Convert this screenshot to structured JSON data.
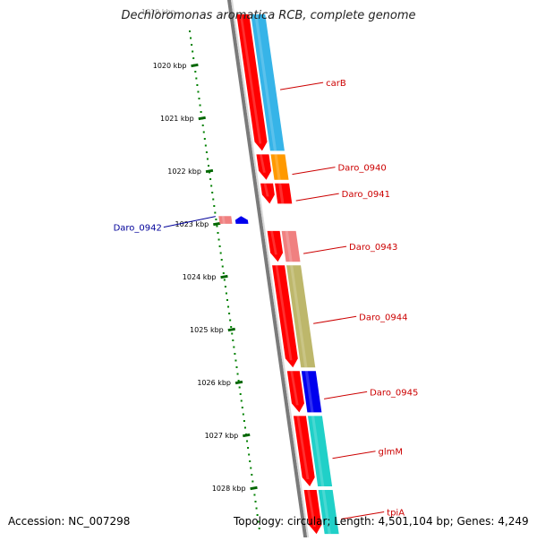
{
  "title": "Dechloromonas aromatica RCB, complete genome",
  "footer": {
    "accession": "Accession: NC_007298",
    "topology": "Topology: circular; Length: 4,501,104 bp; Genes: 4,249"
  },
  "top_tick_label": "1019 kbp",
  "ticks": [
    {
      "label": "1020 kbp",
      "pos_kbp": 1020
    },
    {
      "label": "1021 kbp",
      "pos_kbp": 1021
    },
    {
      "label": "1022 kbp",
      "pos_kbp": 1022
    },
    {
      "label": "1023 kbp",
      "pos_kbp": 1023
    },
    {
      "label": "1024 kbp",
      "pos_kbp": 1024
    },
    {
      "label": "1025 kbp",
      "pos_kbp": 1025
    },
    {
      "label": "1026 kbp",
      "pos_kbp": 1026
    },
    {
      "label": "1027 kbp",
      "pos_kbp": 1027
    },
    {
      "label": "1028 kbp",
      "pos_kbp": 1028
    }
  ],
  "genes": [
    {
      "name": "carB",
      "start_kbp": 1019.0,
      "end_kbp": 1021.65,
      "strand": "+",
      "cog_color": "#36b4e8",
      "label_color": "#cc0000"
    },
    {
      "name": "Daro_0940",
      "start_kbp": 1021.65,
      "end_kbp": 1022.2,
      "strand": "+",
      "cog_color": "#ff9900",
      "label_color": "#cc0000"
    },
    {
      "name": "Daro_0941",
      "start_kbp": 1022.2,
      "end_kbp": 1022.65,
      "strand": "+",
      "cog_color": "#ff0000",
      "label_color": "#cc0000"
    },
    {
      "name": "Daro_0942",
      "start_kbp": 1022.75,
      "end_kbp": 1023.1,
      "strand": "-",
      "cog_color": "#0000ee",
      "label_color": "#000099"
    },
    {
      "name": "Daro_0943",
      "start_kbp": 1023.1,
      "end_kbp": 1023.75,
      "strand": "+",
      "cog_color": "#f08080",
      "label_color": "#cc0000"
    },
    {
      "name": "Daro_0944",
      "start_kbp": 1023.75,
      "end_kbp": 1025.75,
      "strand": "+",
      "cog_color": "#bdb76b",
      "label_color": "#cc0000"
    },
    {
      "name": "Daro_0945",
      "start_kbp": 1025.75,
      "end_kbp": 1026.6,
      "strand": "+",
      "cog_color": "#0000ee",
      "label_color": "#cc0000"
    },
    {
      "name": "glmM",
      "start_kbp": 1026.6,
      "end_kbp": 1028.0,
      "strand": "+",
      "cog_color": "#20d0c8",
      "label_color": "#cc0000"
    },
    {
      "name": "tpiA",
      "start_kbp": 1028.0,
      "end_kbp": 1028.9,
      "strand": "+",
      "cog_color": "#20d0c8",
      "label_color": "#cc0000"
    }
  ],
  "colors": {
    "cds": "#ff0000",
    "backbone": "#7a7a7a",
    "gc_ticks": "#008000",
    "ruler_tick": "#006600",
    "label_red": "#cc0000",
    "label_blue": "#000099"
  }
}
